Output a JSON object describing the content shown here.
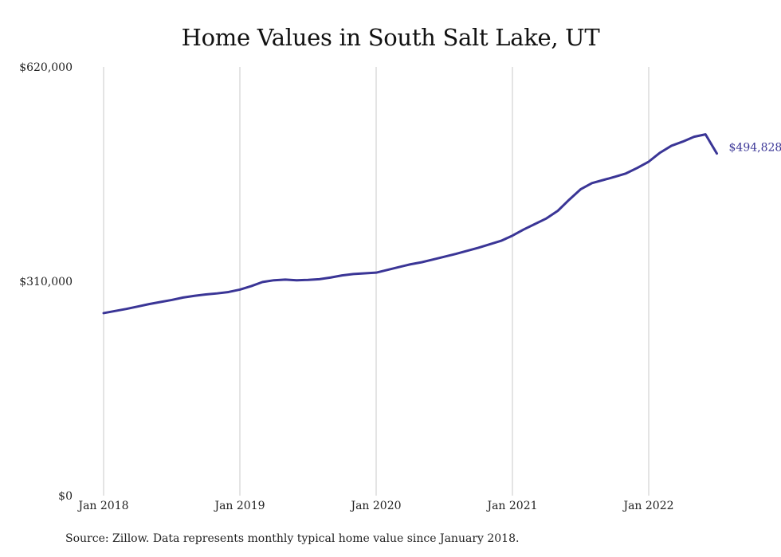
{
  "chart_data": {
    "type": "line",
    "title": "Home Values in South Salt Lake, UT",
    "x_tick_labels": [
      "Jan 2018",
      "Jan 2019",
      "Jan 2020",
      "Jan 2021",
      "Jan 2022"
    ],
    "y_tick_labels": [
      "$0",
      "$310,000",
      "$620,000"
    ],
    "y_ticks": [
      0,
      310000,
      620000
    ],
    "ylim": [
      0,
      620000
    ],
    "x_start": "2018-01",
    "grid": "vertical lines at each January",
    "line_color": "#3a3596",
    "series": [
      {
        "values": [
          264000,
          267000,
          270000,
          273500,
          277000,
          280000,
          283000,
          286500,
          289000,
          291000,
          292500,
          294500,
          298000,
          303000,
          309000,
          311500,
          312500,
          311500,
          312000,
          313000,
          315500,
          318500,
          320500,
          321500,
          322500,
          326500,
          330500,
          334500,
          337500,
          341500,
          345500,
          349500,
          354000,
          358500,
          363500,
          368500,
          376000,
          385000,
          393000,
          401000,
          412000,
          428000,
          443000,
          452000,
          456500,
          461000,
          466000,
          474000,
          483000,
          496000,
          506000,
          512000,
          519000,
          522500,
          494828
        ]
      }
    ],
    "end_label": "$494,828",
    "source": "Source: Zillow. Data represents monthly typical home value since January 2018."
  }
}
